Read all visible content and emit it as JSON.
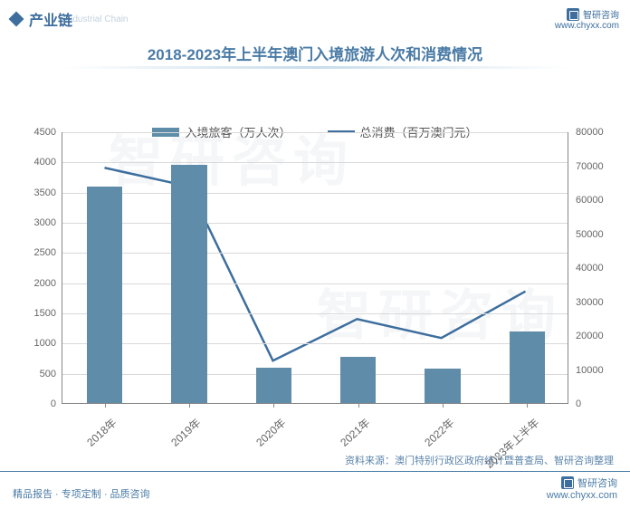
{
  "header": {
    "section_title": "产业链",
    "section_subtitle_en": "Industrial Chain",
    "brand": "智研咨询",
    "brand_url": "www.chyxx.com"
  },
  "chart": {
    "type": "bar+line",
    "title": "2018-2023年上半年澳门入境旅游人次和消费情况",
    "categories": [
      "2018年",
      "2019年",
      "2020年",
      "2021年",
      "2022年",
      "2023年上半年"
    ],
    "bar_series": {
      "name": "入境旅客（万人次）",
      "values": [
        3580,
        3940,
        590,
        770,
        570,
        1180
      ],
      "color": "#5f8ca8",
      "bar_width": 0.42
    },
    "line_series": {
      "name": "总消费（百万澳门元）",
      "values": [
        69500,
        64000,
        12500,
        24800,
        19200,
        33000
      ],
      "color": "#3d6e9e",
      "line_width": 2.5
    },
    "y_left": {
      "min": 0,
      "max": 4500,
      "step": 500
    },
    "y_right": {
      "min": 0,
      "max": 80000,
      "step": 10000
    },
    "background_color": "#ffffff",
    "grid_color": "#d9d9d9",
    "axis_color": "#888888",
    "label_fontsize": 11,
    "title_fontsize": 17,
    "title_color": "#4a7ba6",
    "x_label_rotation": -42
  },
  "source_line": "资料来源：澳门特别行政区政府统计暨普查局、智研咨询整理",
  "footer": {
    "left": "精品报告 · 专项定制 · 品质咨询",
    "right_brand": "智研咨询",
    "right_url": "www.chyxx.com"
  },
  "watermark_text": "智研咨询"
}
